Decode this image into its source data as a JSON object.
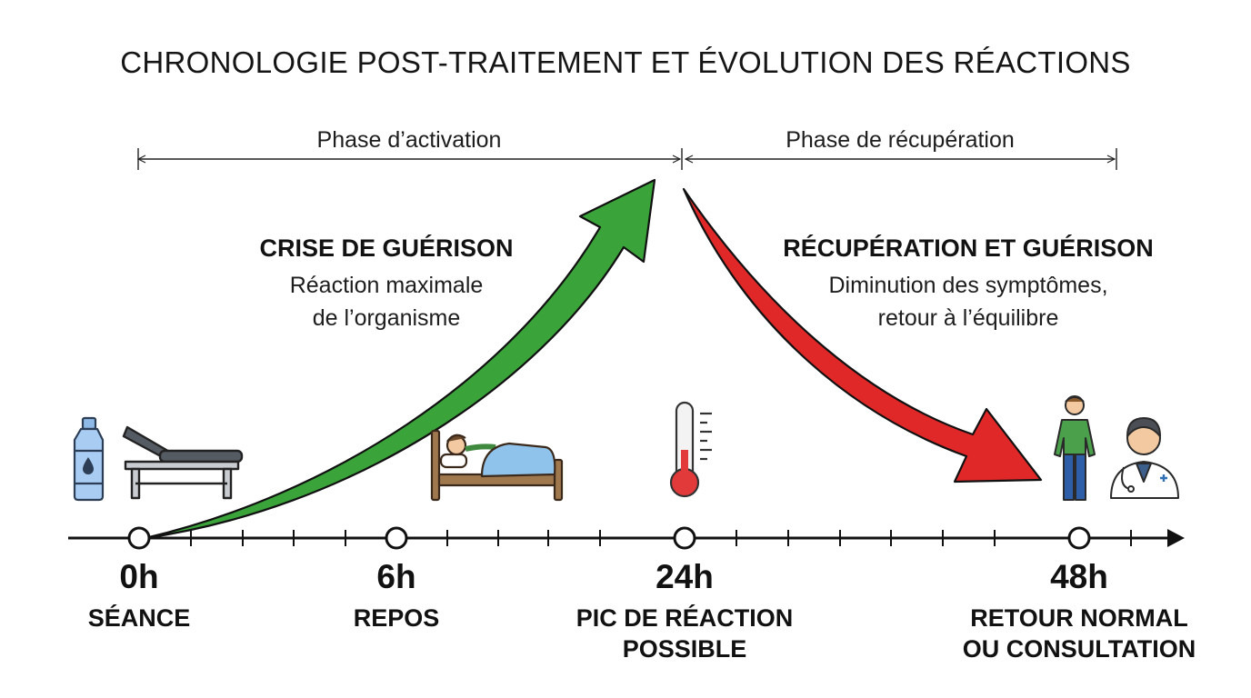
{
  "title": "CHRONOLOGIE POST-TRAITEMENT ET ÉVOLUTION DES RÉACTIONS",
  "phases": {
    "activation": "Phase d’activation",
    "recovery": "Phase de récupération"
  },
  "rise": {
    "heading": "CRISE DE GUÉRISON",
    "line1": "Réaction maximale",
    "line2": "de l’organisme",
    "color": "#3aa33a"
  },
  "fall": {
    "heading": "RÉCUPÉRATION ET GUÉRISON",
    "line1": "Diminution des symptômes,",
    "line2": "retour à l’équilibre",
    "color": "#e02828"
  },
  "milestones": [
    {
      "time": "0h",
      "label": "SÉANCE",
      "label2": "",
      "icons": [
        "water-bottle-icon",
        "treatment-table-icon"
      ]
    },
    {
      "time": "6h",
      "label": "REPOS",
      "label2": "",
      "icons": [
        "bed-rest-icon"
      ]
    },
    {
      "time": "24h",
      "label": "PIC DE RÉACTION",
      "label2": "POSSIBLE",
      "icons": [
        "thermometer-icon"
      ]
    },
    {
      "time": "48h",
      "label": "RETOUR NORMAL",
      "label2": "OU CONSULTATION",
      "icons": [
        "healthy-person-icon",
        "doctor-icon"
      ]
    }
  ]
}
